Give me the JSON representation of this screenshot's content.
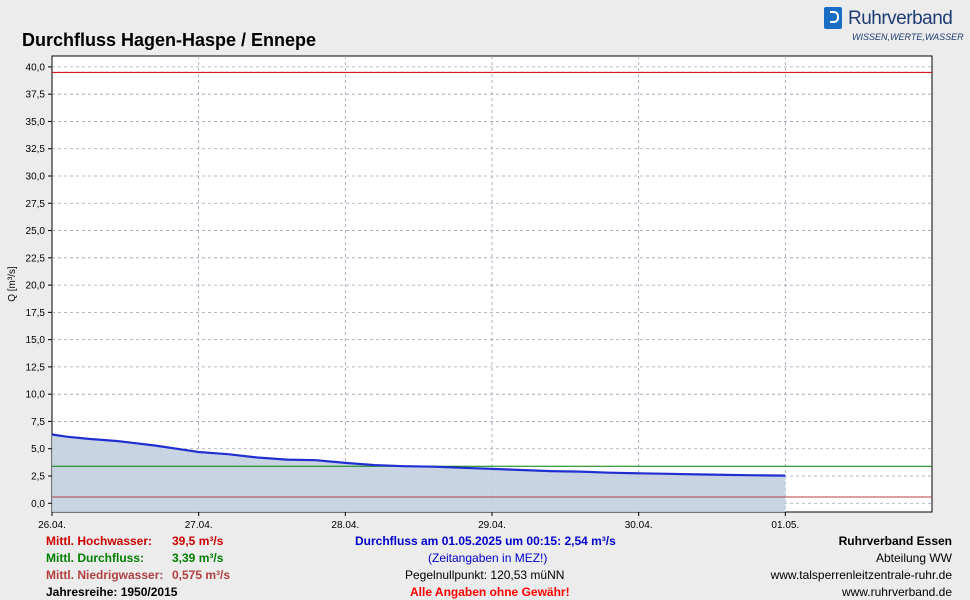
{
  "title": "Durchfluss Hagen-Haspe / Ennepe",
  "logo": {
    "name": "Ruhrverband",
    "slogan": "WISSEN,WERTE,WASSER",
    "brand_color": "#1a6dc4"
  },
  "stats": {
    "hochwasser_label": "Mittl. Hochwasser:",
    "hochwasser_value": "39,5 m³/s",
    "durchfluss_label": "Mittl. Durchfluss:",
    "durchfluss_value": "3,39 m³/s",
    "niedrigwasser_label": "Mittl. Niedrigwasser:",
    "niedrigwasser_value": "0,575 m³/s",
    "jahresreihe": "Jahresreihe: 1950/2015"
  },
  "center": {
    "current": "Durchfluss am 01.05.2025 um 00:15: 2,54 m³/s",
    "timezone": "(Zeitangaben in MEZ!)",
    "pegel": "Pegelnullpunkt: 120,53 müNN",
    "disclaimer": "Alle Angaben ohne Gewähr!"
  },
  "right": {
    "org": "Ruhrverband Essen",
    "dept": "Abteilung WW",
    "url1": "www.talsperrenleitzentrale-ruhr.de",
    "url2": "www.ruhrverband.de"
  },
  "colors": {
    "hochwasser": "#cc0000",
    "durchfluss": "#008000",
    "niedrigwasser": "#b04040",
    "series": "#1f2fd0",
    "fill": "#c3cfe0",
    "current": "#0000cc",
    "disclaimer": "#ff0000"
  },
  "chart_data": {
    "type": "area",
    "ylabel": "Q [m³/s]",
    "ylim": [
      -0.8,
      41
    ],
    "yticks": [
      "0,0",
      "2,5",
      "5,0",
      "7,5",
      "10,0",
      "12,5",
      "15,0",
      "17,5",
      "20,0",
      "22,5",
      "25,0",
      "27,5",
      "30,0",
      "32,5",
      "35,0",
      "37,5",
      "40,0"
    ],
    "xlim": [
      0,
      6
    ],
    "xticks": [
      "26.04.",
      "27.04.",
      "28.04.",
      "29.04.",
      "30.04.",
      "01.05."
    ],
    "grid": true,
    "reference_lines": [
      {
        "name": "Mittl. Hochwasser",
        "value": 39.5
      },
      {
        "name": "Mittl. Durchfluss",
        "value": 3.39
      },
      {
        "name": "Mittl. Niedrigwasser",
        "value": 0.575
      }
    ],
    "series": [
      {
        "name": "Durchfluss",
        "x": [
          0,
          0.1,
          0.25,
          0.45,
          0.7,
          0.9,
          1.0,
          1.2,
          1.4,
          1.6,
          1.8,
          2.0,
          2.2,
          2.4,
          2.6,
          2.8,
          3.0,
          3.2,
          3.4,
          3.6,
          3.8,
          4.0,
          4.2,
          4.4,
          4.6,
          4.8,
          5.0
        ],
        "y": [
          6.3,
          6.1,
          5.9,
          5.7,
          5.3,
          4.9,
          4.7,
          4.5,
          4.2,
          4.0,
          3.95,
          3.7,
          3.5,
          3.4,
          3.35,
          3.25,
          3.15,
          3.05,
          2.95,
          2.9,
          2.8,
          2.75,
          2.7,
          2.65,
          2.6,
          2.56,
          2.54
        ]
      }
    ]
  }
}
